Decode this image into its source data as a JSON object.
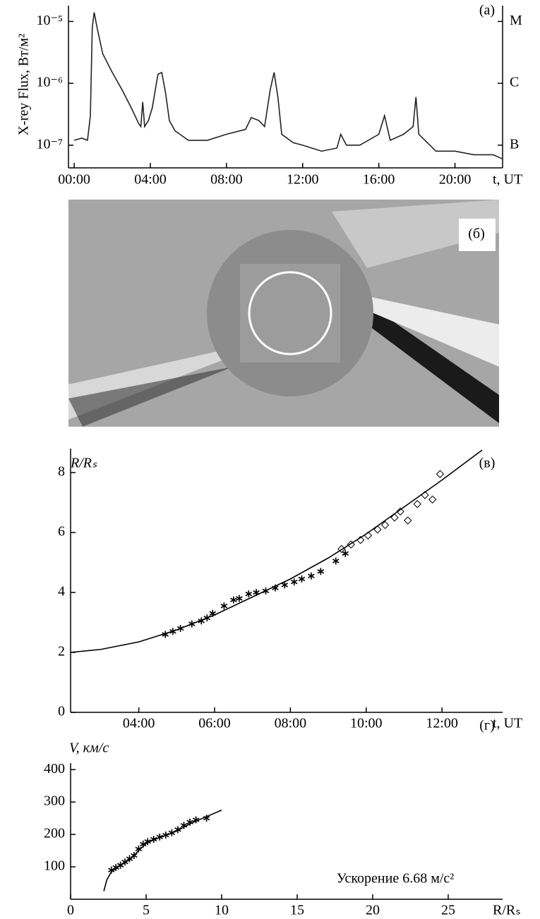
{
  "chart_data": [
    {
      "type": "line",
      "title": "(а)",
      "y_label": "X-rey Flux, Вт/м²",
      "x_label": "t, UT",
      "ylog": true,
      "color": "#222222",
      "x": [
        0,
        0.4,
        0.7,
        0.85,
        0.95,
        1.05,
        1.2,
        1.5,
        2.0,
        2.5,
        3.0,
        3.4,
        3.5,
        3.6,
        3.7,
        3.9,
        4.1,
        4.4,
        4.6,
        4.8,
        5.0,
        5.3,
        6,
        7,
        8,
        9,
        9.3,
        9.7,
        10,
        10.3,
        10.5,
        10.7,
        10.9,
        11.5,
        12,
        13,
        13.8,
        14,
        14.3,
        15,
        16,
        16.3,
        16.6,
        17.3,
        17.8,
        17.95,
        18.1,
        19,
        20,
        21,
        22,
        22.5
      ],
      "values": [
        1.2e-07,
        1.3e-07,
        1.2e-07,
        3e-07,
        8e-06,
        1.4e-05,
        8e-06,
        3e-06,
        1.5e-06,
        8e-07,
        4e-07,
        2.2e-07,
        2e-07,
        5e-07,
        2e-07,
        2.5e-07,
        4e-07,
        1.4e-06,
        1.5e-06,
        7e-07,
        2.5e-07,
        1.7e-07,
        1.2e-07,
        1.2e-07,
        1.5e-07,
        1.8e-07,
        2.8e-07,
        2.5e-07,
        2e-07,
        8e-07,
        1.5e-06,
        6e-07,
        1.5e-07,
        1.1e-07,
        1e-07,
        8e-08,
        9e-08,
        1.5e-07,
        1e-07,
        1e-07,
        1.5e-07,
        3e-07,
        1.2e-07,
        1.5e-07,
        2e-07,
        6e-07,
        1.5e-07,
        8e-08,
        8e-08,
        7e-08,
        7e-08,
        6e-08
      ],
      "xlim": [
        -0.3,
        22.5
      ],
      "ylim": [
        4.3e-08,
        1.8e-05
      ],
      "xticks": [
        {
          "value": 0,
          "label": "00:00"
        },
        {
          "value": 4,
          "label": "04:00"
        },
        {
          "value": 8,
          "label": "08:00"
        },
        {
          "value": 12,
          "label": "12:00"
        },
        {
          "value": 16,
          "label": "16:00"
        },
        {
          "value": 20,
          "label": "20:00"
        }
      ],
      "yticks": [
        {
          "value": 1e-07,
          "label": "10⁻⁷"
        },
        {
          "value": 1e-06,
          "label": "10⁻⁶"
        },
        {
          "value": 1e-05,
          "label": "10⁻⁵"
        }
      ],
      "y2lim": [
        4.3e-08,
        1.8e-05
      ],
      "y2ticks": [
        {
          "value": 1e-07,
          "label": "B"
        },
        {
          "value": 1e-06,
          "label": "C"
        },
        {
          "value": 1e-05,
          "label": "M"
        }
      ]
    },
    {
      "type": "image",
      "title": "(б)"
    },
    {
      "type": "scatter",
      "title": "(в)",
      "y_label": "R/Rₛ",
      "x_label": "t, UT",
      "xlim": [
        2.2,
        13.6
      ],
      "ylim": [
        0,
        8.8
      ],
      "xticks": [
        {
          "value": 4,
          "label": "04:00"
        },
        {
          "value": 6,
          "label": "06:00"
        },
        {
          "value": 8,
          "label": "08:00"
        },
        {
          "value": 10,
          "label": "10:00"
        },
        {
          "value": 12,
          "label": "12:00"
        }
      ],
      "yticks": [
        0,
        2,
        4,
        6,
        8
      ],
      "series": [
        {
          "marker": "star",
          "color": "#000000",
          "x": [
            4.7,
            4.9,
            5.1,
            5.4,
            5.65,
            5.8,
            5.95,
            6.25,
            6.5,
            6.65,
            6.9,
            7.1,
            7.35,
            7.6,
            7.85,
            8.1,
            8.3,
            8.55,
            8.8,
            9.2,
            9.45
          ],
          "values": [
            2.6,
            2.7,
            2.8,
            2.95,
            3.05,
            3.15,
            3.3,
            3.55,
            3.75,
            3.8,
            3.95,
            4.0,
            4.05,
            4.15,
            4.25,
            4.35,
            4.45,
            4.55,
            4.7,
            5.05,
            5.3
          ]
        },
        {
          "marker": "diamond",
          "color": "#000000",
          "x": [
            9.35,
            9.6,
            9.85,
            10.05,
            10.3,
            10.5,
            10.75,
            10.9,
            11.1,
            11.35,
            11.55,
            11.75,
            11.95
          ],
          "values": [
            5.45,
            5.6,
            5.75,
            5.9,
            6.1,
            6.25,
            6.5,
            6.7,
            6.4,
            6.95,
            7.25,
            7.1,
            7.95
          ]
        },
        {
          "marker": "none",
          "color": "#000000",
          "x": [
            2.2,
            3,
            4,
            5,
            6,
            7,
            8,
            9,
            10,
            11,
            12,
            13.06
          ],
          "values": [
            2.0,
            2.1,
            2.35,
            2.75,
            3.25,
            3.85,
            4.45,
            5.15,
            5.95,
            6.85,
            7.75,
            8.75
          ]
        }
      ]
    },
    {
      "type": "scatter",
      "title": "(г)",
      "y_label": "V, км/с",
      "x_label": "R/Rₛ",
      "annotation": "Ускорение 6.68 м/с²",
      "xlim": [
        0,
        28.6
      ],
      "ylim": [
        0,
        420
      ],
      "xticks": [
        0,
        5,
        10,
        15,
        20,
        25
      ],
      "yticks": [
        100,
        200,
        300,
        400
      ],
      "series": [
        {
          "marker": "star",
          "color": "#000000",
          "x": [
            2.7,
            3.0,
            3.3,
            3.6,
            3.9,
            4.2,
            4.5,
            4.8,
            5.1,
            5.5,
            5.9,
            6.3,
            6.7,
            7.1,
            7.5,
            7.9,
            8.3,
            9.0
          ],
          "values": [
            90,
            98,
            105,
            115,
            125,
            135,
            155,
            170,
            178,
            185,
            192,
            198,
            205,
            215,
            228,
            238,
            245,
            250
          ]
        },
        {
          "marker": "none",
          "color": "#000000",
          "x": [
            2.2,
            2.4,
            2.7,
            3,
            3.5,
            4,
            4.5,
            5,
            5.5,
            6,
            7,
            8,
            9,
            10
          ],
          "values": [
            25,
            60,
            85,
            95,
            110,
            125,
            150,
            172,
            183,
            192,
            210,
            235,
            255,
            275
          ]
        }
      ]
    }
  ]
}
